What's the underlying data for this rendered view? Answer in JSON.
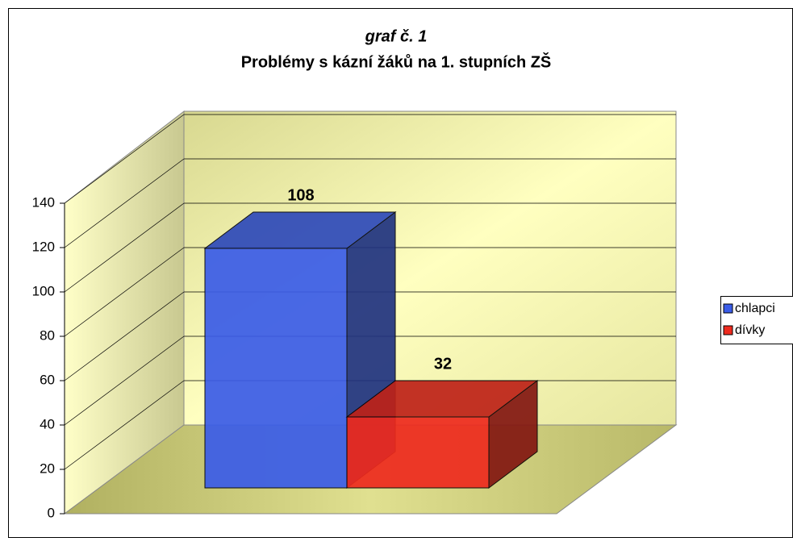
{
  "chart_data": {
    "type": "bar3d",
    "title": "graf č. 1",
    "subtitle": "Problémy s kázní žáků na 1. stupních ZŠ",
    "categories": [
      null
    ],
    "series": [
      {
        "name": "chlapci",
        "color": "#3a5ce8",
        "values": [
          108
        ]
      },
      {
        "name": "dívky",
        "color": "#ee2a1e",
        "values": [
          32
        ]
      }
    ],
    "ylim": [
      0,
      140
    ],
    "yticks": [
      0,
      20,
      40,
      60,
      80,
      100,
      120,
      140
    ],
    "grid": true,
    "legend": "right"
  }
}
